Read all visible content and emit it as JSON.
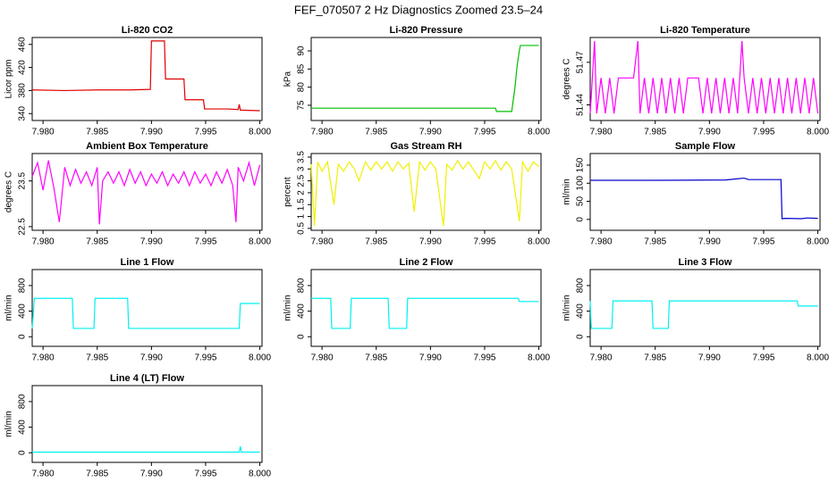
{
  "title": "FEF_070507  2 Hz Diagnostics Zoomed 23.5–24",
  "chart_data": [
    {
      "type": "line",
      "title": "Li-820 CO2",
      "ylabel": "Licor ppm",
      "color": "#e00000",
      "x": [
        7.979,
        7.982,
        7.985,
        7.988,
        7.9899,
        7.99,
        7.9912,
        7.9913,
        7.993,
        7.9931,
        7.9948,
        7.9949,
        7.997,
        7.998,
        7.9981,
        7.9982,
        8.0
      ],
      "values": [
        381,
        380,
        381,
        381,
        382,
        466,
        466,
        400,
        400,
        364,
        364,
        348,
        348,
        347,
        356,
        346,
        345
      ],
      "xlim": [
        7.979,
        8.0002
      ],
      "ylim": [
        328,
        472
      ],
      "yticks": [
        340,
        380,
        420,
        460
      ],
      "xticks": [
        {
          "value": 7.98,
          "label": "7.980"
        },
        {
          "value": 7.985,
          "label": "7.985"
        },
        {
          "value": 7.99,
          "label": "7.990"
        },
        {
          "value": 7.995,
          "label": "7.995"
        },
        {
          "value": 8.0,
          "label": "8.000"
        }
      ]
    },
    {
      "type": "line",
      "title": "Li-820 Pressure",
      "ylabel": "kPa",
      "color": "#00c000",
      "x": [
        7.979,
        7.99,
        7.996,
        7.9961,
        7.9975,
        7.9978,
        7.998,
        7.9982,
        7.9983,
        8.0
      ],
      "values": [
        74.2,
        74.2,
        74.2,
        73.3,
        73.3,
        80,
        86,
        90,
        91.5,
        91.5
      ],
      "xlim": [
        7.979,
        8.0002
      ],
      "ylim": [
        70.8,
        93.7
      ],
      "yticks": [
        75,
        80,
        85,
        90
      ],
      "xticks": [
        {
          "value": 7.98,
          "label": "7.980"
        },
        {
          "value": 7.985,
          "label": "7.985"
        },
        {
          "value": 7.99,
          "label": "7.990"
        },
        {
          "value": 7.995,
          "label": "7.995"
        },
        {
          "value": 8.0,
          "label": "8.000"
        }
      ]
    },
    {
      "type": "line",
      "title": "Li-820 Temperature",
      "ylabel": "degrees C",
      "color": "#ff00ff",
      "x": [
        7.979,
        7.9792,
        7.9794,
        7.9796,
        7.98,
        7.9804,
        7.9808,
        7.9812,
        7.9816,
        7.982,
        7.983,
        7.9834,
        7.9836,
        7.984,
        7.9844,
        7.9848,
        7.9852,
        7.9856,
        7.986,
        7.9864,
        7.9868,
        7.9872,
        7.9876,
        7.988,
        7.9884,
        7.989,
        7.9894,
        7.9898,
        7.9902,
        7.9906,
        7.991,
        7.9914,
        7.9918,
        7.9922,
        7.9926,
        7.993,
        7.9932,
        7.9936,
        7.994,
        7.9944,
        7.9948,
        7.9952,
        7.9956,
        7.996,
        7.9964,
        7.9968,
        7.9972,
        7.9976,
        7.998,
        7.9984,
        7.9988,
        7.9992,
        7.9996,
        8.0
      ],
      "values": [
        51.434,
        51.459,
        51.485,
        51.434,
        51.459,
        51.434,
        51.459,
        51.434,
        51.459,
        51.459,
        51.459,
        51.485,
        51.434,
        51.459,
        51.434,
        51.459,
        51.434,
        51.459,
        51.434,
        51.459,
        51.434,
        51.459,
        51.434,
        51.459,
        51.459,
        51.459,
        51.434,
        51.459,
        51.434,
        51.459,
        51.434,
        51.459,
        51.434,
        51.459,
        51.434,
        51.485,
        51.459,
        51.434,
        51.459,
        51.434,
        51.459,
        51.434,
        51.459,
        51.434,
        51.459,
        51.434,
        51.459,
        51.434,
        51.459,
        51.434,
        51.459,
        51.434,
        51.459,
        51.434
      ],
      "xlim": [
        7.979,
        8.0002
      ],
      "ylim": [
        51.429,
        51.4875
      ],
      "yticks": [
        51.44,
        51.47
      ],
      "xticks": [
        {
          "value": 7.98,
          "label": "7.980"
        },
        {
          "value": 7.985,
          "label": "7.985"
        },
        {
          "value": 7.99,
          "label": "7.990"
        },
        {
          "value": 7.995,
          "label": "7.995"
        },
        {
          "value": 8.0,
          "label": "8.000"
        }
      ]
    },
    {
      "type": "line",
      "title": "Ambient Box Temperature",
      "ylabel": "degrees C",
      "color": "#ff00ff",
      "x": [
        7.979,
        7.9795,
        7.98,
        7.9805,
        7.981,
        7.9815,
        7.982,
        7.9825,
        7.983,
        7.9835,
        7.984,
        7.9845,
        7.985,
        7.9852,
        7.9855,
        7.986,
        7.9865,
        7.987,
        7.9875,
        7.988,
        7.9885,
        7.989,
        7.9895,
        7.99,
        7.9905,
        7.991,
        7.9915,
        7.992,
        7.9925,
        7.993,
        7.9935,
        7.994,
        7.9945,
        7.995,
        7.9955,
        7.996,
        7.9965,
        7.997,
        7.9975,
        7.9978,
        7.998,
        7.9985,
        7.999,
        7.9995,
        8.0
      ],
      "values": [
        23.6,
        23.9,
        23.3,
        23.95,
        23.35,
        22.6,
        23.8,
        23.4,
        23.75,
        23.45,
        23.7,
        23.4,
        23.8,
        22.55,
        23.5,
        23.7,
        23.45,
        23.7,
        23.4,
        23.75,
        23.45,
        23.7,
        23.4,
        23.65,
        23.45,
        23.7,
        23.4,
        23.65,
        23.45,
        23.7,
        23.4,
        23.7,
        23.45,
        23.65,
        23.4,
        23.7,
        23.45,
        23.75,
        23.4,
        22.6,
        23.8,
        23.5,
        23.9,
        23.4,
        23.85
      ],
      "xlim": [
        7.979,
        8.0002
      ],
      "ylim": [
        22.42,
        24.1
      ],
      "yticks": [
        22.5,
        23.5
      ],
      "xticks": [
        {
          "value": 7.98,
          "label": "7.980"
        },
        {
          "value": 7.985,
          "label": "7.985"
        },
        {
          "value": 7.99,
          "label": "7.990"
        },
        {
          "value": 7.995,
          "label": "7.995"
        },
        {
          "value": 8.0,
          "label": "8.000"
        }
      ]
    },
    {
      "type": "line",
      "title": "Gas Stream RH",
      "ylabel": "percent",
      "color": "#f0f000",
      "x": [
        7.979,
        7.9793,
        7.9796,
        7.98,
        7.9805,
        7.9811,
        7.9815,
        7.982,
        7.9825,
        7.983,
        7.9834,
        7.984,
        7.9845,
        7.985,
        7.9855,
        7.986,
        7.9865,
        7.987,
        7.9875,
        7.988,
        7.9885,
        7.989,
        7.9895,
        7.99,
        7.9905,
        7.9912,
        7.9915,
        7.992,
        7.9925,
        7.993,
        7.9935,
        7.994,
        7.9945,
        7.995,
        7.9955,
        7.996,
        7.9965,
        7.997,
        7.9975,
        7.9982,
        7.9985,
        7.999,
        7.9995,
        8.0
      ],
      "values": [
        3.2,
        0.6,
        3.3,
        2.9,
        3.3,
        1.5,
        3.2,
        2.9,
        3.3,
        3.0,
        2.5,
        3.3,
        2.95,
        3.3,
        3.0,
        3.3,
        2.9,
        3.3,
        3.0,
        3.25,
        1.2,
        3.3,
        2.95,
        3.3,
        3.0,
        0.6,
        3.2,
        2.95,
        3.35,
        3.0,
        3.3,
        2.95,
        2.6,
        3.3,
        3.0,
        3.35,
        2.95,
        3.3,
        3.0,
        0.8,
        3.3,
        2.9,
        3.3,
        3.1
      ],
      "xlim": [
        7.979,
        8.0002
      ],
      "ylim": [
        0.42,
        3.65
      ],
      "yticks": [
        0.5,
        1,
        1.5,
        2,
        2.5,
        3,
        3.5
      ],
      "xticks": [
        {
          "value": 7.98,
          "label": "7.980"
        },
        {
          "value": 7.985,
          "label": "7.985"
        },
        {
          "value": 7.99,
          "label": "7.990"
        },
        {
          "value": 7.995,
          "label": "7.995"
        },
        {
          "value": 8.0,
          "label": "8.000"
        }
      ]
    },
    {
      "type": "line",
      "title": "Sample Flow",
      "ylabel": "ml/min",
      "color": "#0000cc",
      "x": [
        7.979,
        7.985,
        7.9915,
        7.9925,
        7.9932,
        7.9936,
        7.9966,
        7.9967,
        7.997,
        7.9985,
        7.999,
        8.0
      ],
      "values": [
        108,
        108,
        109,
        112,
        114,
        110,
        110,
        2,
        3,
        2,
        4,
        3
      ],
      "xlim": [
        7.979,
        8.0002
      ],
      "ylim": [
        -30,
        182
      ],
      "yticks": [
        0,
        50,
        100,
        150
      ],
      "xticks": [
        {
          "value": 7.98,
          "label": "7.980"
        },
        {
          "value": 7.985,
          "label": "7.985"
        },
        {
          "value": 7.99,
          "label": "7.990"
        },
        {
          "value": 7.995,
          "label": "7.995"
        },
        {
          "value": 8.0,
          "label": "8.000"
        }
      ]
    },
    {
      "type": "line",
      "title": "Line 1 Flow",
      "ylabel": "ml/min",
      "color": "#00f0f0",
      "x": [
        7.979,
        7.9792,
        7.9827,
        7.9828,
        7.9847,
        7.9848,
        7.9878,
        7.9879,
        7.9981,
        7.9982,
        8.0
      ],
      "values": [
        130,
        600,
        600,
        130,
        130,
        600,
        600,
        130,
        130,
        520,
        520
      ],
      "xlim": [
        7.979,
        8.0002
      ],
      "ylim": [
        -150,
        1050
      ],
      "yticks": [
        0,
        400,
        800
      ],
      "xticks": [
        {
          "value": 7.98,
          "label": "7.980"
        },
        {
          "value": 7.985,
          "label": "7.985"
        },
        {
          "value": 7.99,
          "label": "7.990"
        },
        {
          "value": 7.995,
          "label": "7.995"
        },
        {
          "value": 8.0,
          "label": "8.000"
        }
      ]
    },
    {
      "type": "line",
      "title": "Line 2 Flow",
      "ylabel": "ml/min",
      "color": "#00f0f0",
      "x": [
        7.979,
        7.9808,
        7.9809,
        7.9826,
        7.9827,
        7.9861,
        7.9862,
        7.9878,
        7.9879,
        7.9981,
        7.9982,
        8.0
      ],
      "values": [
        600,
        600,
        130,
        130,
        600,
        600,
        130,
        130,
        600,
        600,
        550,
        550
      ],
      "xlim": [
        7.979,
        8.0002
      ],
      "ylim": [
        -150,
        1050
      ],
      "yticks": [
        0,
        400,
        800
      ],
      "xticks": [
        {
          "value": 7.98,
          "label": "7.980"
        },
        {
          "value": 7.985,
          "label": "7.985"
        },
        {
          "value": 7.99,
          "label": "7.990"
        },
        {
          "value": 7.995,
          "label": "7.995"
        },
        {
          "value": 8.0,
          "label": "8.000"
        }
      ]
    },
    {
      "type": "line",
      "title": "Line 3 Flow",
      "ylabel": "ml/min",
      "color": "#00f0f0",
      "x": [
        7.979,
        7.9791,
        7.981,
        7.9811,
        7.9847,
        7.9848,
        7.9862,
        7.9863,
        7.9981,
        7.9982,
        8.0
      ],
      "values": [
        560,
        130,
        130,
        560,
        560,
        130,
        130,
        560,
        560,
        480,
        480
      ],
      "xlim": [
        7.979,
        8.0002
      ],
      "ylim": [
        -150,
        1050
      ],
      "yticks": [
        0,
        400,
        800
      ],
      "xticks": [
        {
          "value": 7.98,
          "label": "7.980"
        },
        {
          "value": 7.985,
          "label": "7.985"
        },
        {
          "value": 7.99,
          "label": "7.990"
        },
        {
          "value": 7.995,
          "label": "7.995"
        },
        {
          "value": 8.0,
          "label": "8.000"
        }
      ]
    },
    {
      "type": "line",
      "title": "Line 4 (LT) Flow",
      "ylabel": "ml/min",
      "color": "#00f0f0",
      "x": [
        7.979,
        7.9981,
        7.9982,
        7.9983,
        8.0
      ],
      "values": [
        10,
        10,
        100,
        10,
        10
      ],
      "xlim": [
        7.979,
        8.0002
      ],
      "ylim": [
        -150,
        1050
      ],
      "yticks": [
        0,
        400,
        800
      ],
      "xticks": [
        {
          "value": 7.98,
          "label": "7.980"
        },
        {
          "value": 7.985,
          "label": "7.985"
        },
        {
          "value": 7.99,
          "label": "7.990"
        },
        {
          "value": 7.995,
          "label": "7.995"
        },
        {
          "value": 8.0,
          "label": "8.000"
        }
      ]
    }
  ]
}
